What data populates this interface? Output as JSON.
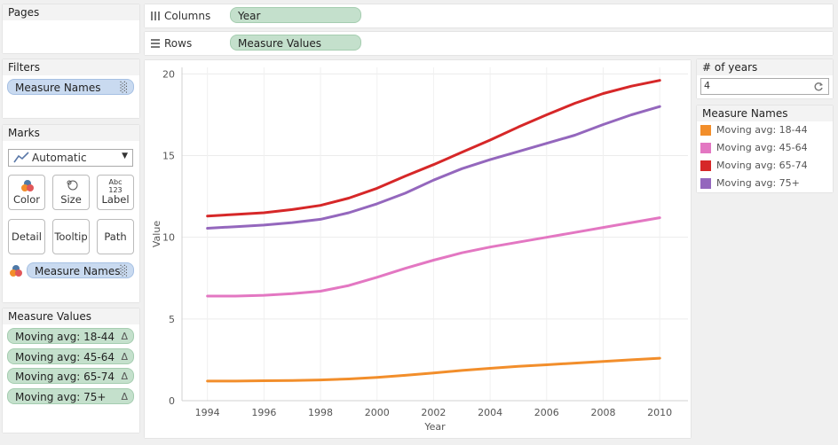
{
  "pages": {
    "title": "Pages"
  },
  "shelves": {
    "columns": {
      "label": "Columns",
      "pill": "Year"
    },
    "rows": {
      "label": "Rows",
      "pill": "Measure Values"
    }
  },
  "filters": {
    "title": "Filters",
    "pill": "Measure Names"
  },
  "marks": {
    "title": "Marks",
    "type": "Automatic",
    "buttons": {
      "color": "Color",
      "size": "Size",
      "label": "Label",
      "detail": "Detail",
      "tooltip": "Tooltip",
      "path": "Path"
    },
    "label_icon_text": "Abc\n123",
    "color_pill": "Measure Names"
  },
  "measure_values": {
    "title": "Measure Values",
    "items": [
      "Moving avg: 18-44",
      "Moving avg: 45-64",
      "Moving avg: 65-74",
      "Moving avg: 75+"
    ],
    "delta_symbol": "Δ"
  },
  "years_param": {
    "title": "# of years",
    "value": "4"
  },
  "legend": {
    "title": "Measure Names",
    "items": [
      {
        "label": "Moving avg: 18-44",
        "color": "#f28e2b"
      },
      {
        "label": "Moving avg: 45-64",
        "color": "#e377c2"
      },
      {
        "label": "Moving avg: 65-74",
        "color": "#d62728"
      },
      {
        "label": "Moving avg: 75+",
        "color": "#9467bd"
      }
    ]
  },
  "chart_data": {
    "type": "line",
    "xlabel": "Year",
    "ylabel": "Value",
    "xlim": [
      1993.1,
      2011.0
    ],
    "ylim": [
      0,
      20.4
    ],
    "x_ticks": [
      1994,
      1996,
      1998,
      2000,
      2002,
      2004,
      2006,
      2008,
      2010
    ],
    "y_ticks": [
      0,
      5,
      10,
      15,
      20
    ],
    "grid": true,
    "x": [
      1994,
      1995,
      1996,
      1997,
      1998,
      1999,
      2000,
      2001,
      2002,
      2003,
      2004,
      2005,
      2006,
      2007,
      2008,
      2009,
      2010
    ],
    "series": [
      {
        "name": "Moving avg: 18-44",
        "color": "#f28e2b",
        "values": [
          1.2,
          1.2,
          1.22,
          1.23,
          1.27,
          1.33,
          1.42,
          1.55,
          1.7,
          1.85,
          1.98,
          2.1,
          2.2,
          2.3,
          2.4,
          2.5,
          2.6
        ]
      },
      {
        "name": "Moving avg: 45-64",
        "color": "#e377c2",
        "values": [
          6.4,
          6.4,
          6.45,
          6.55,
          6.7,
          7.05,
          7.55,
          8.1,
          8.6,
          9.05,
          9.4,
          9.7,
          10.0,
          10.3,
          10.6,
          10.9,
          11.2
        ]
      },
      {
        "name": "Moving avg: 65-74",
        "color": "#d62728",
        "values": [
          11.3,
          11.4,
          11.5,
          11.7,
          11.95,
          12.4,
          13.0,
          13.75,
          14.45,
          15.2,
          15.95,
          16.75,
          17.5,
          18.2,
          18.8,
          19.25,
          19.6
        ]
      },
      {
        "name": "Moving avg: 75+",
        "color": "#9467bd",
        "values": [
          10.55,
          10.65,
          10.75,
          10.9,
          11.1,
          11.5,
          12.05,
          12.7,
          13.5,
          14.2,
          14.75,
          15.25,
          15.75,
          16.25,
          16.9,
          17.5,
          18.0
        ]
      }
    ]
  }
}
